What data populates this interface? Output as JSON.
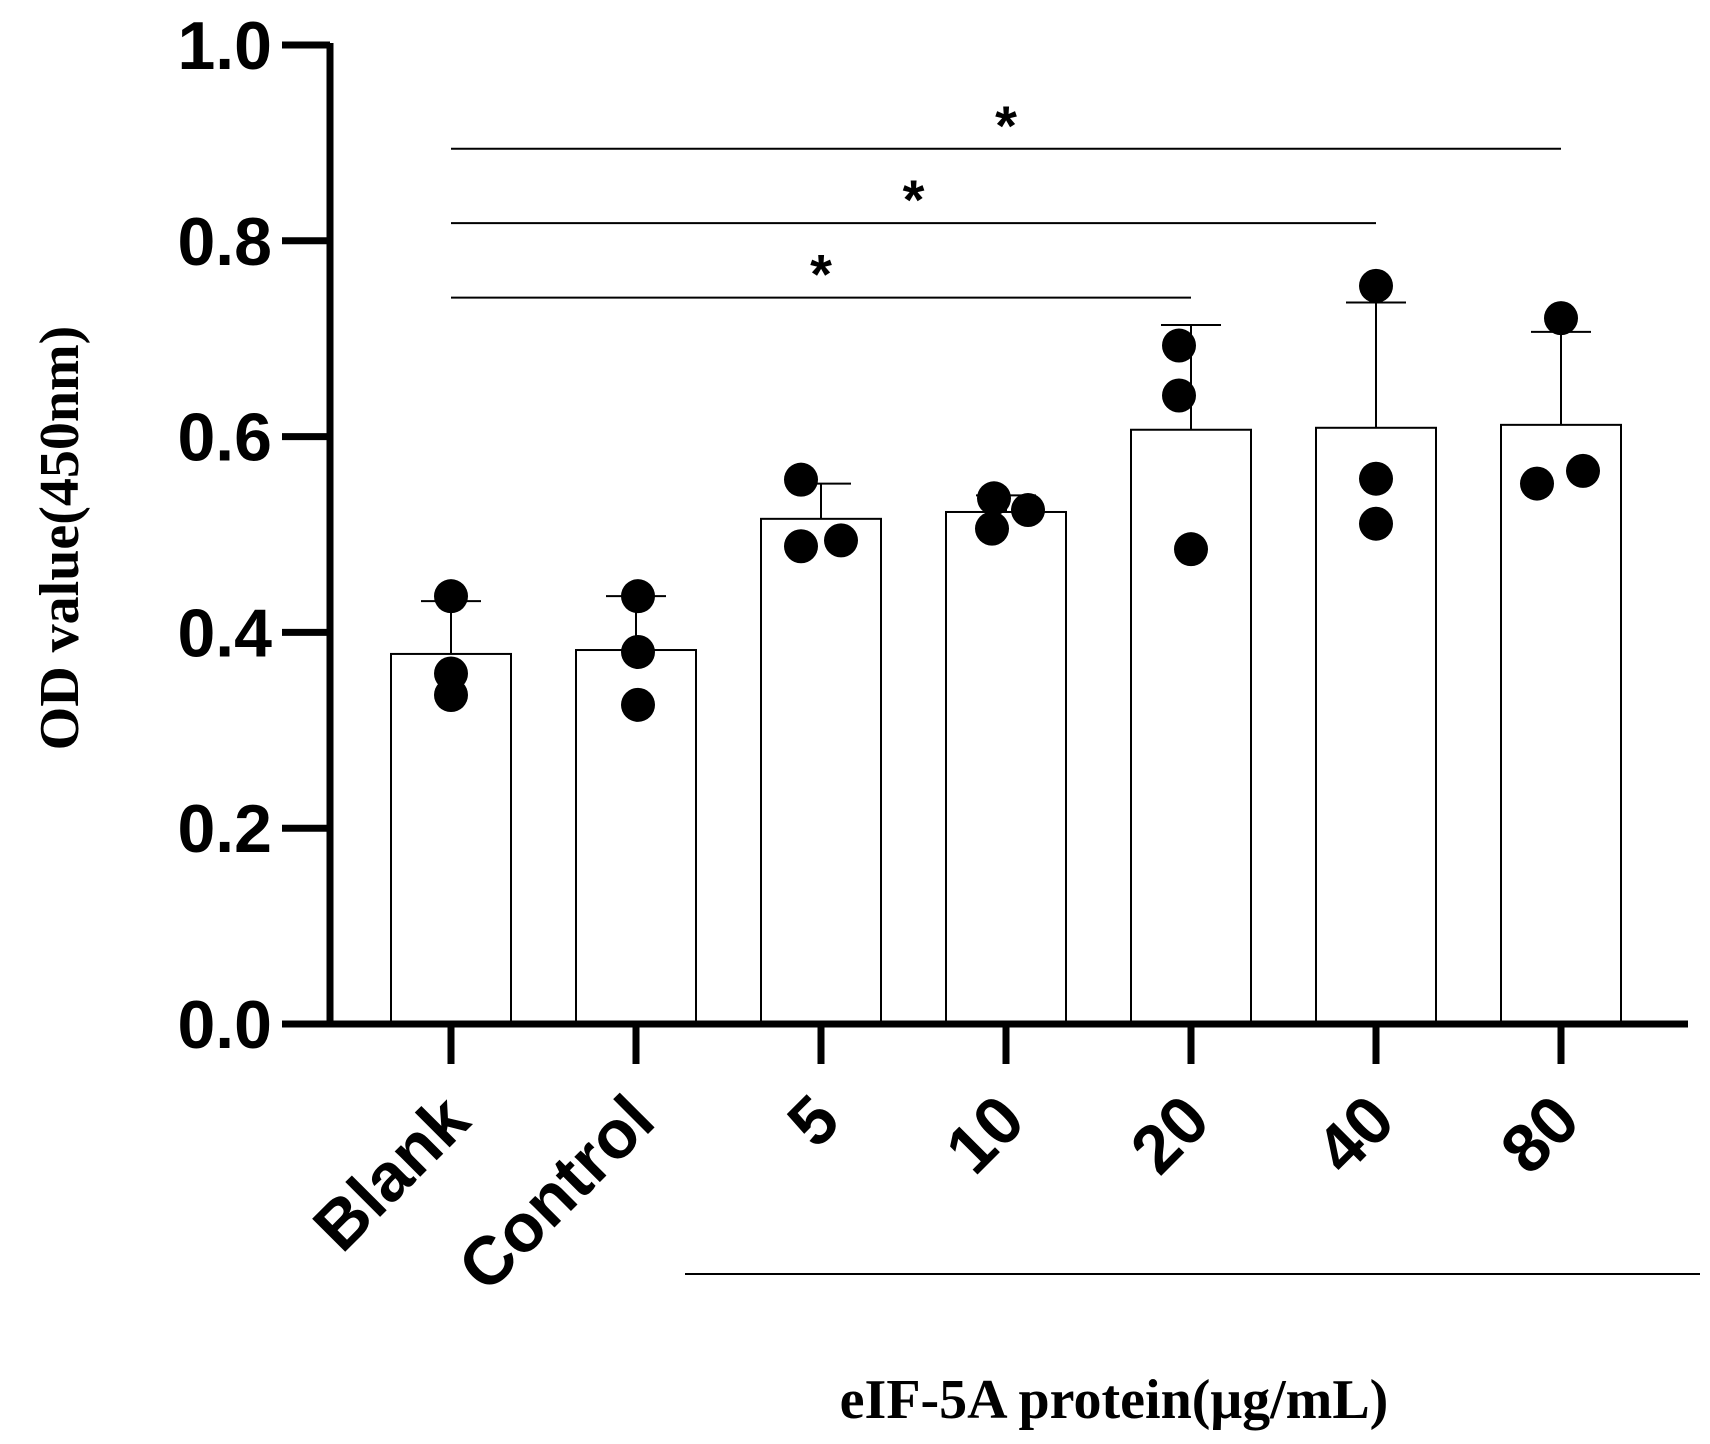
{
  "chart_data": {
    "type": "bar",
    "title": "",
    "xlabel": "eIF-5A protein(μg/mL)",
    "ylabel": "OD value(450nm)",
    "ylim": [
      0,
      1.0
    ],
    "yticks": [
      0.0,
      0.2,
      0.4,
      0.6,
      0.8,
      1.0
    ],
    "ytick_labels": [
      "0.0",
      "0.2",
      "0.4",
      "0.6",
      "0.8",
      "1.0"
    ],
    "categories": [
      "Blank",
      "Control",
      "5",
      "10",
      "20",
      "40",
      "80"
    ],
    "values": [
      0.378,
      0.382,
      0.516,
      0.523,
      0.607,
      0.609,
      0.612
    ],
    "error_upper": [
      0.432,
      0.437,
      0.552,
      0.54,
      0.714,
      0.737,
      0.707
    ],
    "points": [
      [
        0.437,
        0.358,
        0.336
      ],
      [
        0.437,
        0.38,
        0.326
      ],
      [
        0.556,
        0.488,
        0.494
      ],
      [
        0.537,
        0.506,
        0.525
      ],
      [
        0.693,
        0.642,
        0.485
      ],
      [
        0.754,
        0.557,
        0.511
      ],
      [
        0.721,
        0.552,
        0.565
      ]
    ],
    "significance": [
      {
        "from": "Blank",
        "to": "20",
        "y": 0.742,
        "label": "*"
      },
      {
        "from": "Blank",
        "to": "40",
        "y": 0.818,
        "label": "*"
      },
      {
        "from": "Blank",
        "to": "80",
        "y": 0.894,
        "label": "*"
      }
    ],
    "grid": false,
    "legend": "none",
    "colors": {
      "bar_fill": "#ffffff",
      "bar_stroke": "#000000",
      "points": "#000000"
    }
  }
}
